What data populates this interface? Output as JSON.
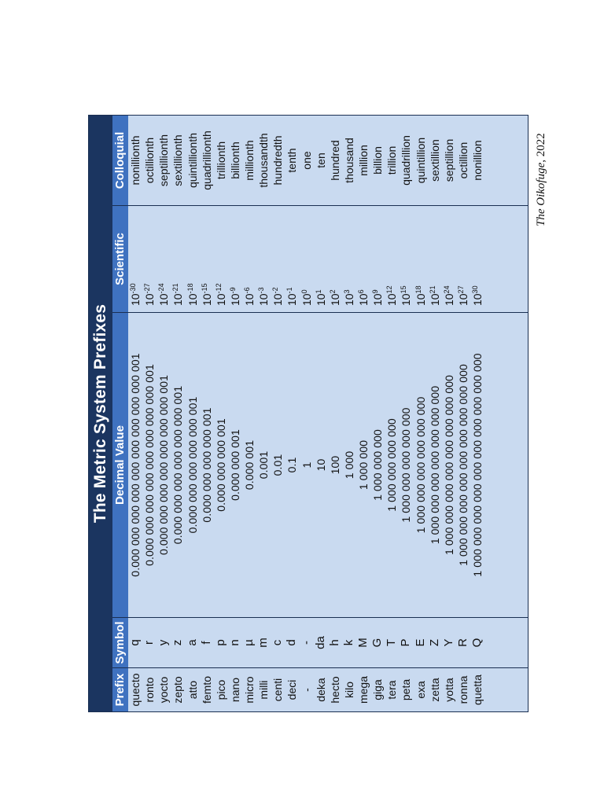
{
  "title": "The Metric System Prefixes",
  "columns": {
    "prefix": "Prefix",
    "symbol": "Symbol",
    "decimal": "Decimal Value",
    "scientific": "Scientific",
    "colloquial": "Colloquial"
  },
  "rows": [
    {
      "prefix": "quecto",
      "symbol": "q",
      "decimal": "0.000 000 000 000 000 000 000 000 000 001",
      "base": "10",
      "exp": "-30",
      "colloquial": "nonillionth"
    },
    {
      "prefix": "ronto",
      "symbol": "r",
      "decimal": "0.000 000 000 000 000 000 000 000 001",
      "base": "10",
      "exp": "-27",
      "colloquial": "octillionth"
    },
    {
      "prefix": "yocto",
      "symbol": "y",
      "decimal": "0.000 000 000 000 000 000 000 001",
      "base": "10",
      "exp": "-24",
      "colloquial": "septillionth"
    },
    {
      "prefix": "zepto",
      "symbol": "z",
      "decimal": "0.000 000 000 000 000 000 001",
      "base": "10",
      "exp": "-21",
      "colloquial": "sextillionth"
    },
    {
      "prefix": "atto",
      "symbol": "a",
      "decimal": "0.000 000 000 000 000 001",
      "base": "10",
      "exp": "-18",
      "colloquial": "quintillionth"
    },
    {
      "prefix": "femto",
      "symbol": "f",
      "decimal": "0.000 000 000 000 001",
      "base": "10",
      "exp": "-15",
      "colloquial": "quadrillionth"
    },
    {
      "prefix": "pico",
      "symbol": "p",
      "decimal": "0.000 000 000 001",
      "base": "10",
      "exp": "-12",
      "colloquial": "trillionth"
    },
    {
      "prefix": "nano",
      "symbol": "n",
      "decimal": "0.000 000 001",
      "base": "10",
      "exp": "-9",
      "colloquial": "billionth"
    },
    {
      "prefix": "micro",
      "symbol": "µ",
      "decimal": "0.000 001",
      "base": "10",
      "exp": "-6",
      "colloquial": "millionth"
    },
    {
      "prefix": "milli",
      "symbol": "m",
      "decimal": "0.001",
      "base": "10",
      "exp": "-3",
      "colloquial": "thousandth"
    },
    {
      "prefix": "centi",
      "symbol": "c",
      "decimal": "0.01",
      "base": "10",
      "exp": "-2",
      "colloquial": "hundredth"
    },
    {
      "prefix": "deci",
      "symbol": "d",
      "decimal": "0.1",
      "base": "10",
      "exp": "-1",
      "colloquial": "tenth"
    },
    {
      "prefix": "-",
      "symbol": "-",
      "decimal": "1",
      "base": "10",
      "exp": "0",
      "colloquial": "one"
    },
    {
      "prefix": "deka",
      "symbol": "da",
      "decimal": "10",
      "base": "10",
      "exp": "1",
      "colloquial": "ten"
    },
    {
      "prefix": "hecto",
      "symbol": "h",
      "decimal": "100",
      "base": "10",
      "exp": "2",
      "colloquial": "hundred"
    },
    {
      "prefix": "kilo",
      "symbol": "k",
      "decimal": "1 000",
      "base": "10",
      "exp": "3",
      "colloquial": "thousand"
    },
    {
      "prefix": "mega",
      "symbol": "M",
      "decimal": "1 000 000",
      "base": "10",
      "exp": "6",
      "colloquial": "million"
    },
    {
      "prefix": "giga",
      "symbol": "G",
      "decimal": "1 000 000 000",
      "base": "10",
      "exp": "9",
      "colloquial": "billion"
    },
    {
      "prefix": "tera",
      "symbol": "T",
      "decimal": "1 000 000 000 000",
      "base": "10",
      "exp": "12",
      "colloquial": "trillion"
    },
    {
      "prefix": "peta",
      "symbol": "P",
      "decimal": "1 000 000 000 000 000",
      "base": "10",
      "exp": "15",
      "colloquial": "quadrillion"
    },
    {
      "prefix": "exa",
      "symbol": "E",
      "decimal": "1 000 000 000 000 000 000",
      "base": "10",
      "exp": "18",
      "colloquial": "quintillion"
    },
    {
      "prefix": "zetta",
      "symbol": "Z",
      "decimal": "1 000 000 000 000 000 000 000",
      "base": "10",
      "exp": "21",
      "colloquial": "sextillion"
    },
    {
      "prefix": "yotta",
      "symbol": "Y",
      "decimal": "1 000 000 000 000 000 000 000 000",
      "base": "10",
      "exp": "24",
      "colloquial": "septillion"
    },
    {
      "prefix": "ronna",
      "symbol": "R",
      "decimal": "1 000 000 000 000 000 000 000 000 000",
      "base": "10",
      "exp": "27",
      "colloquial": "octillion"
    },
    {
      "prefix": "quetta",
      "symbol": "Q",
      "decimal": "1 000 000 000 000 000 000 000 000 000 000",
      "base": "10",
      "exp": "30",
      "colloquial": "nonillion"
    }
  ],
  "credit": {
    "source": "The Oikofuge",
    "year": ", 2022"
  },
  "colors": {
    "title_bg": "#1b3560",
    "header_bg": "#3f72c0",
    "cell_bg": "#c9daf0"
  }
}
